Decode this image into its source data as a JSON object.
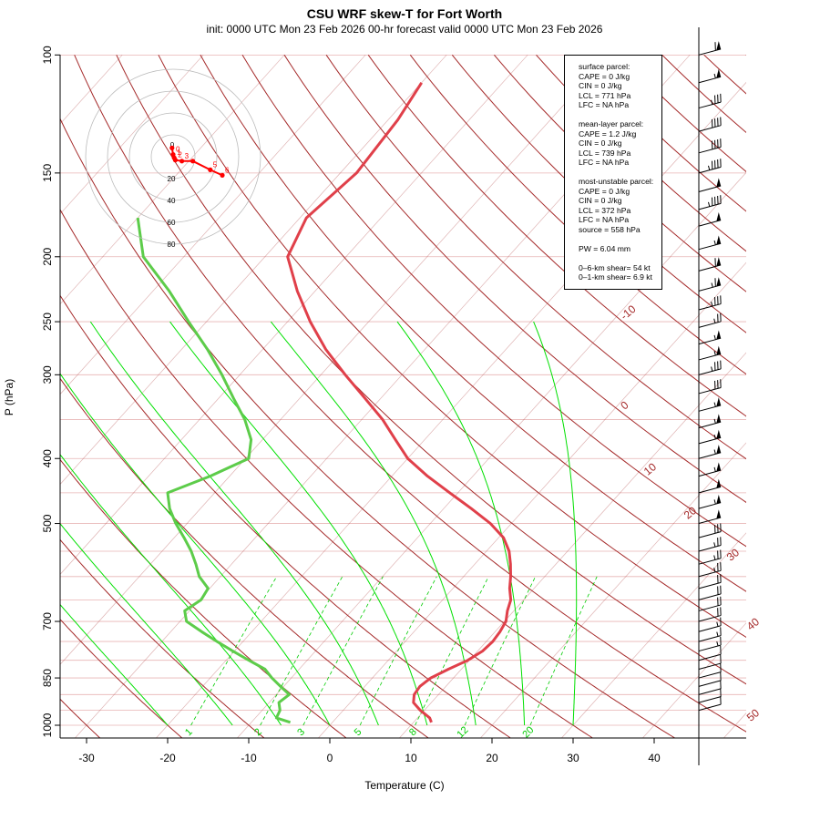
{
  "title": "CSU WRF skew-T for Fort Worth",
  "subtitle": "init: 0000 UTC Mon 23 Feb 2026     00-hr forecast valid 0000 UTC Mon 23 Feb 2026",
  "colors": {
    "temperature": "#e0404a",
    "dewpoint": "#5dcc4a",
    "isotherm": "#a52a2a",
    "dry_adiabat": "#a52a2a",
    "moist_adiabat": "#00e000",
    "mixing_ratio": "#00cc00",
    "isobar": "#e8b4b4"
  },
  "info_box": {
    "surface_header": "surface parcel:",
    "surface": [
      "CAPE = 0 J/kg",
      "CIN = 0 J/kg",
      "LCL = 771 hPa",
      "LFC = NA hPa"
    ],
    "mean_layer_header": "mean-layer parcel:",
    "mean_layer": [
      "CAPE = 1.2 J/kg",
      "CIN = 0 J/kg",
      "LCL = 739 hPa",
      "LFC = NA hPa"
    ],
    "most_unstable_header": "most-unstable parcel:",
    "most_unstable": [
      "CAPE = 0 J/kg",
      "CIN = 0 J/kg",
      "LCL = 372 hPa",
      "LFC = NA hPa",
      "source = 558 hPa"
    ],
    "pw": "PW =  6.04 mm",
    "shear_6km": "0–6-km shear= 54 kt",
    "shear_1km": "0–1-km shear= 6.9 kt"
  },
  "chart_data": {
    "type": "line",
    "title": "CSU WRF skew-T for Fort Worth",
    "xlabel": "Temperature (C)",
    "ylabel": "P (hPa)",
    "pressure_ticks": [
      100,
      150,
      200,
      250,
      300,
      400,
      500,
      700,
      850,
      1000
    ],
    "temperature_ticks": [
      -30,
      -20,
      -10,
      0,
      10,
      20,
      30,
      40
    ],
    "xlim": [
      -33,
      52
    ],
    "ylim": [
      1050,
      100
    ],
    "isotherm_labels": [
      "-10",
      "0",
      "10",
      "20",
      "30",
      "40",
      "50"
    ],
    "mixing_ratio_labels": [
      "1",
      "2",
      "3",
      "5",
      "8",
      "12",
      "20"
    ],
    "mixing_ratio_values": [
      1,
      2,
      3,
      5,
      8,
      12,
      20
    ],
    "series": [
      {
        "name": "temperature",
        "pressure": [
          990,
          975,
          950,
          925,
          900,
          875,
          850,
          825,
          800,
          775,
          750,
          725,
          700,
          675,
          650,
          625,
          600,
          575,
          550,
          525,
          500,
          475,
          450,
          425,
          400,
          375,
          350,
          325,
          300,
          275,
          250,
          225,
          200,
          175,
          150,
          125,
          110
        ],
        "values": [
          12.2,
          11.5,
          9.5,
          7.8,
          7.0,
          6.8,
          7.2,
          8.4,
          9.8,
          10.6,
          10.8,
          10.6,
          10.2,
          9.2,
          8.4,
          7.0,
          5.8,
          4.4,
          2.8,
          0.6,
          -2.6,
          -6.6,
          -11.0,
          -15.6,
          -20.0,
          -23.6,
          -27.4,
          -32.0,
          -37.0,
          -42.2,
          -47.2,
          -52.2,
          -57.2,
          -59.2,
          -58.0,
          -58.8,
          -60.0
        ]
      },
      {
        "name": "dewpoint",
        "pressure": [
          990,
          975,
          950,
          925,
          900,
          875,
          850,
          825,
          800,
          775,
          750,
          725,
          700,
          675,
          650,
          625,
          600,
          575,
          550,
          525,
          500,
          475,
          450,
          425,
          400,
          375,
          350,
          325,
          300,
          275,
          250,
          225,
          200,
          175
        ],
        "values": [
          -5.2,
          -7.4,
          -7.8,
          -8.8,
          -8.4,
          -10.4,
          -12.4,
          -14.2,
          -17.2,
          -20.2,
          -23.2,
          -26.2,
          -29.2,
          -30.6,
          -29.8,
          -30.2,
          -32.6,
          -34.4,
          -36.4,
          -38.8,
          -41.4,
          -43.8,
          -45.8,
          -42.4,
          -39.6,
          -41.4,
          -44.4,
          -48.2,
          -52.2,
          -56.8,
          -62.2,
          -68.0,
          -75.0,
          -80.0
        ]
      }
    ],
    "wind_barbs": [
      {
        "p": 100,
        "spd": 60,
        "dir": 255
      },
      {
        "p": 110,
        "spd": 55,
        "dir": 255
      },
      {
        "p": 120,
        "spd": 35,
        "dir": 255
      },
      {
        "p": 130,
        "spd": 40,
        "dir": 255
      },
      {
        "p": 140,
        "spd": 40,
        "dir": 255
      },
      {
        "p": 150,
        "spd": 45,
        "dir": 255
      },
      {
        "p": 160,
        "spd": 50,
        "dir": 255
      },
      {
        "p": 170,
        "spd": 45,
        "dir": 255
      },
      {
        "p": 180,
        "spd": 50,
        "dir": 255
      },
      {
        "p": 195,
        "spd": 55,
        "dir": 255
      },
      {
        "p": 210,
        "spd": 60,
        "dir": 255
      },
      {
        "p": 225,
        "spd": 65,
        "dir": 255
      },
      {
        "p": 240,
        "spd": 35,
        "dir": 255
      },
      {
        "p": 255,
        "spd": 25,
        "dir": 255
      },
      {
        "p": 270,
        "spd": 55,
        "dir": 255
      },
      {
        "p": 285,
        "spd": 55,
        "dir": 255
      },
      {
        "p": 300,
        "spd": 35,
        "dir": 255
      },
      {
        "p": 320,
        "spd": 30,
        "dir": 255
      },
      {
        "p": 340,
        "spd": 55,
        "dir": 255
      },
      {
        "p": 360,
        "spd": 55,
        "dir": 255
      },
      {
        "p": 380,
        "spd": 55,
        "dir": 255
      },
      {
        "p": 400,
        "spd": 55,
        "dir": 255
      },
      {
        "p": 425,
        "spd": 55,
        "dir": 255
      },
      {
        "p": 450,
        "spd": 50,
        "dir": 255
      },
      {
        "p": 475,
        "spd": 55,
        "dir": 255
      },
      {
        "p": 500,
        "spd": 50,
        "dir": 255
      },
      {
        "p": 525,
        "spd": 30,
        "dir": 255
      },
      {
        "p": 550,
        "spd": 25,
        "dir": 255
      },
      {
        "p": 575,
        "spd": 25,
        "dir": 255
      },
      {
        "p": 600,
        "spd": 25,
        "dir": 255
      },
      {
        "p": 625,
        "spd": 20,
        "dir": 255
      },
      {
        "p": 650,
        "spd": 20,
        "dir": 255
      },
      {
        "p": 675,
        "spd": 20,
        "dir": 255
      },
      {
        "p": 700,
        "spd": 20,
        "dir": 255
      },
      {
        "p": 725,
        "spd": 15,
        "dir": 255
      },
      {
        "p": 750,
        "spd": 15,
        "dir": 255
      },
      {
        "p": 775,
        "spd": 15,
        "dir": 255
      },
      {
        "p": 800,
        "spd": 10,
        "dir": 255
      },
      {
        "p": 825,
        "spd": 10,
        "dir": 255
      },
      {
        "p": 850,
        "spd": 10,
        "dir": 255
      },
      {
        "p": 875,
        "spd": 10,
        "dir": 255
      },
      {
        "p": 900,
        "spd": 10,
        "dir": 255
      },
      {
        "p": 925,
        "spd": 10,
        "dir": 255
      },
      {
        "p": 950,
        "spd": 10,
        "dir": 255
      }
    ],
    "hodograph": {
      "rings": [
        20,
        40,
        60,
        80
      ],
      "ring_labels": [
        "20",
        "40",
        "60",
        "80"
      ],
      "center_label": "0",
      "point_labels": [
        "0",
        "1",
        "2",
        "3",
        "5",
        "6"
      ],
      "points": [
        {
          "u": -1,
          "v": 8
        },
        {
          "u": 0,
          "v": 2
        },
        {
          "u": 1,
          "v": -1
        },
        {
          "u": 2,
          "v": -3
        },
        {
          "u": 8,
          "v": -4
        },
        {
          "u": 18,
          "v": -4
        },
        {
          "u": 34,
          "v": -12
        },
        {
          "u": 45,
          "v": -17
        }
      ]
    }
  }
}
